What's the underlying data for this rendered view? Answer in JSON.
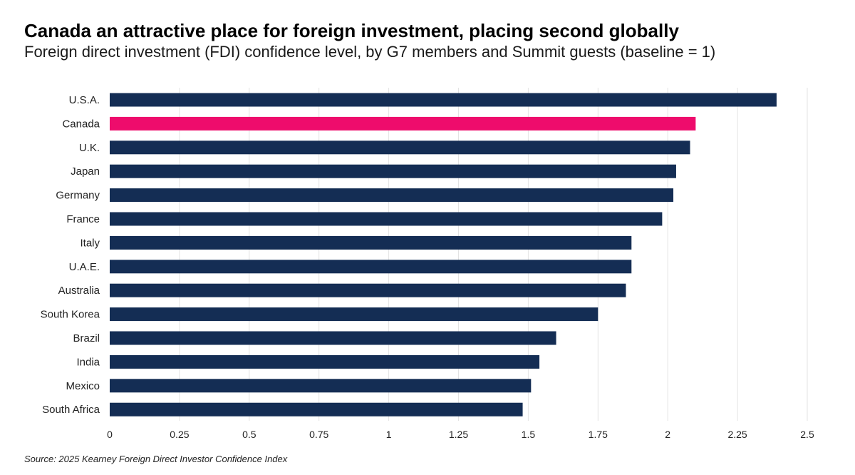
{
  "header": {
    "title": "Canada an attractive place for foreign investment, placing second globally",
    "subtitle": "Foreign direct investment (FDI) confidence level, by G7 members and Summit guests (baseline = 1)"
  },
  "footer": {
    "source": "Source: 2025 Kearney Foreign Direct Investor Confidence Index"
  },
  "colors": {
    "bar": "#142d54",
    "highlight": "#ee0c6c",
    "grid": "#e3e3e3",
    "tick_text": "#222222"
  },
  "chart_data": {
    "type": "bar",
    "orientation": "horizontal",
    "categories": [
      "U.S.A.",
      "Canada",
      "U.K.",
      "Japan",
      "Germany",
      "France",
      "Italy",
      "U.A.E.",
      "Australia",
      "South Korea",
      "Brazil",
      "India",
      "Mexico",
      "South Africa"
    ],
    "values": [
      2.39,
      2.1,
      2.08,
      2.03,
      2.02,
      1.98,
      1.87,
      1.87,
      1.85,
      1.75,
      1.6,
      1.54,
      1.51,
      1.48
    ],
    "highlight": "Canada",
    "xlim": [
      0,
      2.5
    ],
    "xticks": [
      "0",
      "0.25",
      "0.5",
      "0.75",
      "1",
      "1.25",
      "1.5",
      "1.75",
      "2",
      "2.25",
      "2.5"
    ],
    "grid": true,
    "legend": "none"
  }
}
